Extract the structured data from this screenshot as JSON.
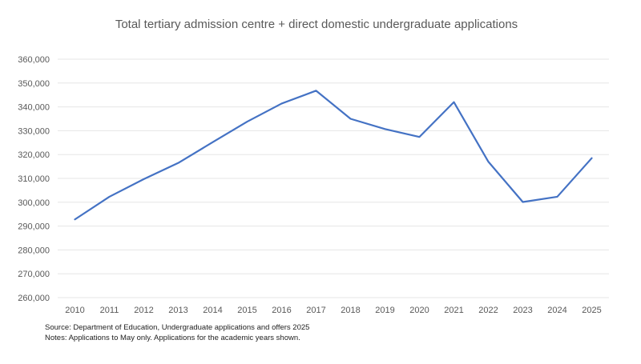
{
  "chart_data": {
    "type": "line",
    "title": "Total tertiary admission centre + direct domestic undergraduate applications",
    "xlabel": "",
    "ylabel": "",
    "categories": [
      "2010",
      "2011",
      "2012",
      "2013",
      "2014",
      "2015",
      "2016",
      "2017",
      "2018",
      "2019",
      "2020",
      "2021",
      "2022",
      "2023",
      "2024",
      "2025"
    ],
    "series": [
      {
        "name": "Applications",
        "color": "#4472c4",
        "values": [
          292800,
          302300,
          309700,
          316500,
          325200,
          333800,
          341400,
          346800,
          335000,
          330700,
          327400,
          342000,
          317000,
          300100,
          302300,
          318500
        ]
      }
    ],
    "ylim": [
      260000,
      360000
    ],
    "yticks": [
      260000,
      270000,
      280000,
      290000,
      300000,
      310000,
      320000,
      330000,
      340000,
      350000,
      360000
    ],
    "ytick_labels": [
      "260,000",
      "270,000",
      "280,000",
      "290,000",
      "300,000",
      "310,000",
      "320,000",
      "330,000",
      "340,000",
      "350,000",
      "360,000"
    ],
    "grid": true
  },
  "notes": {
    "source": "Source: Department of Education, Undergraduate applications and offers 2025",
    "notes": "Notes: Applications to May only. Applications for the academic years shown."
  }
}
